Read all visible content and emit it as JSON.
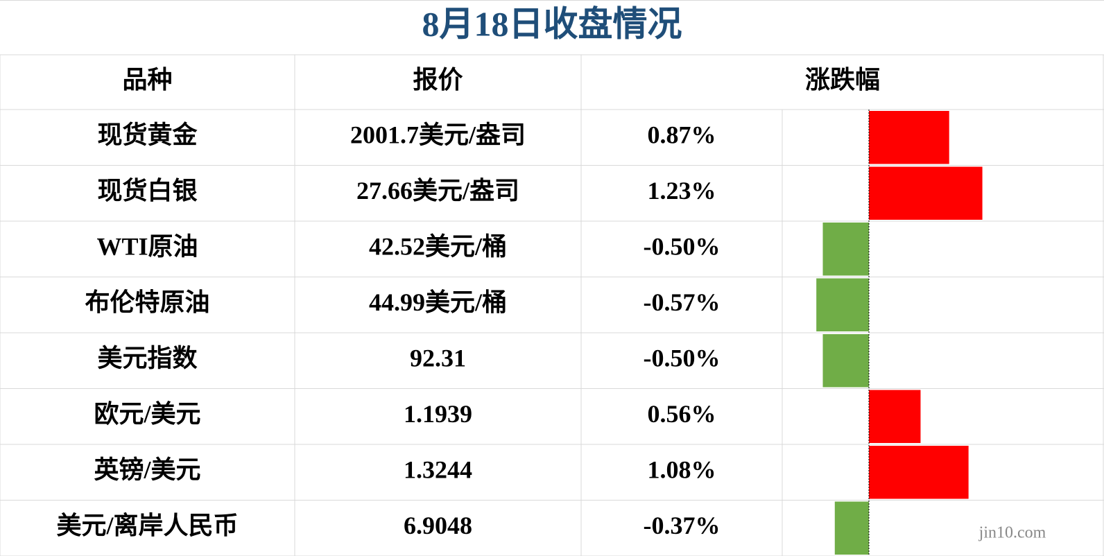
{
  "header": {
    "title": "8月18日收盘情况"
  },
  "table": {
    "columns": [
      "品种",
      "报价",
      "涨跌幅"
    ],
    "rows": [
      {
        "name": "现货黄金",
        "price": "2001.7美元/盎司",
        "change": 0.87,
        "change_label": "0.87%"
      },
      {
        "name": "现货白银",
        "price": "27.66美元/盎司",
        "change": 1.23,
        "change_label": "1.23%"
      },
      {
        "name": "WTI原油",
        "price": "42.52美元/桶",
        "change": -0.5,
        "change_label": "-0.50%"
      },
      {
        "name": "布伦特原油",
        "price": "44.99美元/桶",
        "change": -0.57,
        "change_label": "-0.57%"
      },
      {
        "name": "美元指数",
        "price": "92.31",
        "change": -0.5,
        "change_label": "-0.50%"
      },
      {
        "name": "欧元/美元",
        "price": "1.1939",
        "change": 0.56,
        "change_label": "0.56%"
      },
      {
        "name": "英镑/美元",
        "price": "1.3244",
        "change": 1.08,
        "change_label": "1.08%"
      },
      {
        "name": "美元/离岸人民币",
        "price": "6.9048",
        "change": -0.37,
        "change_label": "-0.37%"
      }
    ]
  },
  "watermark": "jin10.com"
}
